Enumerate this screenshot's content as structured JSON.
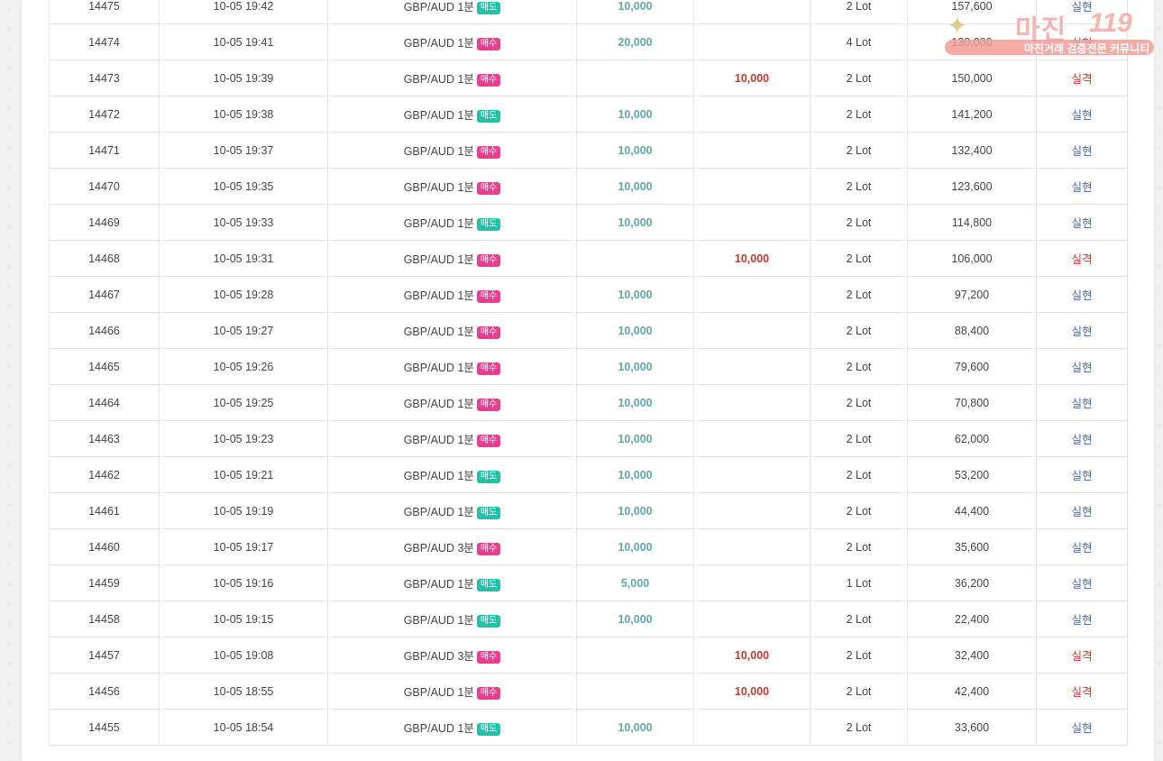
{
  "badge_colors": {
    "sell": "#26c0a6",
    "buy": "#ee3d8f"
  },
  "logo": {
    "main_text": "마진",
    "number_text": "119",
    "subtitle": "마진거래 검증전문 커뮤니티"
  },
  "rows": [
    {
      "id": "14475",
      "time": "10-05 19:42",
      "item": "GBP/AUD 1분",
      "side": "매도",
      "side_type": "sell",
      "profit": "10,000",
      "loss": "",
      "lots": "2 Lot",
      "balance": "157,600",
      "result": "실현",
      "result_type": "win"
    },
    {
      "id": "14474",
      "time": "10-05 19:41",
      "item": "GBP/AUD 1분",
      "side": "매수",
      "side_type": "buy",
      "profit": "20,000",
      "loss": "",
      "lots": "4 Lot",
      "balance": "130,000",
      "result": "실현",
      "result_type": "win"
    },
    {
      "id": "14473",
      "time": "10-05 19:39",
      "item": "GBP/AUD 1분",
      "side": "매수",
      "side_type": "buy",
      "profit": "",
      "loss": "10,000",
      "lots": "2 Lot",
      "balance": "150,000",
      "result": "실격",
      "result_type": "loss"
    },
    {
      "id": "14472",
      "time": "10-05 19:38",
      "item": "GBP/AUD 1분",
      "side": "매도",
      "side_type": "sell",
      "profit": "10,000",
      "loss": "",
      "lots": "2 Lot",
      "balance": "141,200",
      "result": "실현",
      "result_type": "win"
    },
    {
      "id": "14471",
      "time": "10-05 19:37",
      "item": "GBP/AUD 1분",
      "side": "매수",
      "side_type": "buy",
      "profit": "10,000",
      "loss": "",
      "lots": "2 Lot",
      "balance": "132,400",
      "result": "실현",
      "result_type": "win"
    },
    {
      "id": "14470",
      "time": "10-05 19:35",
      "item": "GBP/AUD 1분",
      "side": "매수",
      "side_type": "buy",
      "profit": "10,000",
      "loss": "",
      "lots": "2 Lot",
      "balance": "123,600",
      "result": "실현",
      "result_type": "win"
    },
    {
      "id": "14469",
      "time": "10-05 19:33",
      "item": "GBP/AUD 1분",
      "side": "매도",
      "side_type": "sell",
      "profit": "10,000",
      "loss": "",
      "lots": "2 Lot",
      "balance": "114,800",
      "result": "실현",
      "result_type": "win"
    },
    {
      "id": "14468",
      "time": "10-05 19:31",
      "item": "GBP/AUD 1분",
      "side": "매수",
      "side_type": "buy",
      "profit": "",
      "loss": "10,000",
      "lots": "2 Lot",
      "balance": "106,000",
      "result": "실격",
      "result_type": "loss"
    },
    {
      "id": "14467",
      "time": "10-05 19:28",
      "item": "GBP/AUD 1분",
      "side": "매수",
      "side_type": "buy",
      "profit": "10,000",
      "loss": "",
      "lots": "2 Lot",
      "balance": "97,200",
      "result": "실현",
      "result_type": "win"
    },
    {
      "id": "14466",
      "time": "10-05 19:27",
      "item": "GBP/AUD 1분",
      "side": "매수",
      "side_type": "buy",
      "profit": "10,000",
      "loss": "",
      "lots": "2 Lot",
      "balance": "88,400",
      "result": "실현",
      "result_type": "win"
    },
    {
      "id": "14465",
      "time": "10-05 19:26",
      "item": "GBP/AUD 1분",
      "side": "매수",
      "side_type": "buy",
      "profit": "10,000",
      "loss": "",
      "lots": "2 Lot",
      "balance": "79,600",
      "result": "실현",
      "result_type": "win"
    },
    {
      "id": "14464",
      "time": "10-05 19:25",
      "item": "GBP/AUD 1분",
      "side": "매수",
      "side_type": "buy",
      "profit": "10,000",
      "loss": "",
      "lots": "2 Lot",
      "balance": "70,800",
      "result": "실현",
      "result_type": "win"
    },
    {
      "id": "14463",
      "time": "10-05 19:23",
      "item": "GBP/AUD 1분",
      "side": "매수",
      "side_type": "buy",
      "profit": "10,000",
      "loss": "",
      "lots": "2 Lot",
      "balance": "62,000",
      "result": "실현",
      "result_type": "win"
    },
    {
      "id": "14462",
      "time": "10-05 19:21",
      "item": "GBP/AUD 1분",
      "side": "매도",
      "side_type": "sell",
      "profit": "10,000",
      "loss": "",
      "lots": "2 Lot",
      "balance": "53,200",
      "result": "실현",
      "result_type": "win"
    },
    {
      "id": "14461",
      "time": "10-05 19:19",
      "item": "GBP/AUD 1분",
      "side": "매도",
      "side_type": "sell",
      "profit": "10,000",
      "loss": "",
      "lots": "2 Lot",
      "balance": "44,400",
      "result": "실현",
      "result_type": "win"
    },
    {
      "id": "14460",
      "time": "10-05 19:17",
      "item": "GBP/AUD 3분",
      "side": "매수",
      "side_type": "buy",
      "profit": "10,000",
      "loss": "",
      "lots": "2 Lot",
      "balance": "35,600",
      "result": "실현",
      "result_type": "win"
    },
    {
      "id": "14459",
      "time": "10-05 19:16",
      "item": "GBP/AUD 1분",
      "side": "매도",
      "side_type": "sell",
      "profit": "5,000",
      "loss": "",
      "lots": "1 Lot",
      "balance": "36,200",
      "result": "실현",
      "result_type": "win"
    },
    {
      "id": "14458",
      "time": "10-05 19:15",
      "item": "GBP/AUD 1분",
      "side": "매도",
      "side_type": "sell",
      "profit": "10,000",
      "loss": "",
      "lots": "2 Lot",
      "balance": "22,400",
      "result": "실현",
      "result_type": "win"
    },
    {
      "id": "14457",
      "time": "10-05 19:08",
      "item": "GBP/AUD 3분",
      "side": "매수",
      "side_type": "buy",
      "profit": "",
      "loss": "10,000",
      "lots": "2 Lot",
      "balance": "32,400",
      "result": "실격",
      "result_type": "loss"
    },
    {
      "id": "14456",
      "time": "10-05 18:55",
      "item": "GBP/AUD 1분",
      "side": "매수",
      "side_type": "buy",
      "profit": "",
      "loss": "10,000",
      "lots": "2 Lot",
      "balance": "42,400",
      "result": "실격",
      "result_type": "loss"
    },
    {
      "id": "14455",
      "time": "10-05 18:54",
      "item": "GBP/AUD 1분",
      "side": "매도",
      "side_type": "sell",
      "profit": "10,000",
      "loss": "",
      "lots": "2 Lot",
      "balance": "33,600",
      "result": "실현",
      "result_type": "win"
    }
  ]
}
